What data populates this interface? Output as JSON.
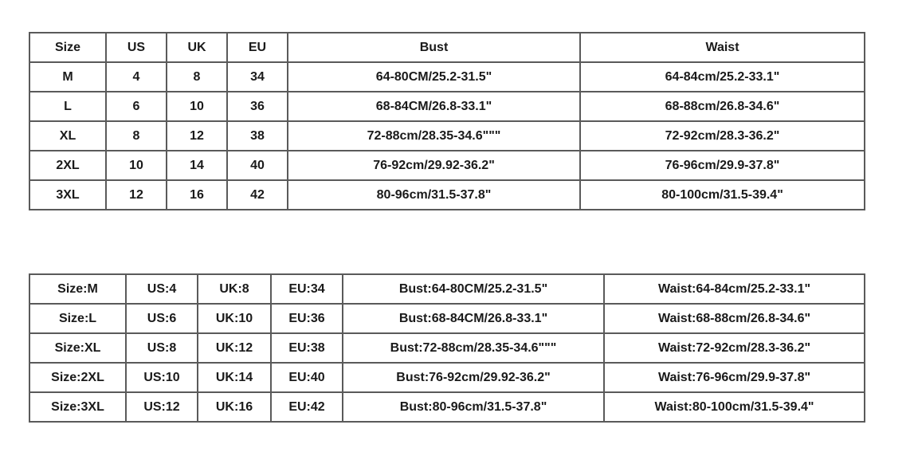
{
  "table1": {
    "header": [
      "Size",
      "US",
      "UK",
      "EU",
      "Bust",
      "Waist"
    ],
    "rows": [
      [
        "M",
        "4",
        "8",
        "34",
        "64-80CM/25.2-31.5\"",
        "64-84cm/25.2-33.1\""
      ],
      [
        "L",
        "6",
        "10",
        "36",
        "68-84CM/26.8-33.1\"",
        "68-88cm/26.8-34.6\""
      ],
      [
        "XL",
        "8",
        "12",
        "38",
        "72-88cm/28.35-34.6\"\"\"",
        "72-92cm/28.3-36.2\""
      ],
      [
        "2XL",
        "10",
        "14",
        "40",
        "76-92cm/29.92-36.2\"",
        "76-96cm/29.9-37.8\""
      ],
      [
        "3XL",
        "12",
        "16",
        "42",
        "80-96cm/31.5-37.8\"",
        "80-100cm/31.5-39.4\""
      ]
    ]
  },
  "table2": {
    "rows": [
      [
        "Size:M",
        "US:4",
        "UK:8",
        "EU:34",
        "Bust:64-80CM/25.2-31.5\"",
        "Waist:64-84cm/25.2-33.1\""
      ],
      [
        "Size:L",
        "US:6",
        "UK:10",
        "EU:36",
        "Bust:68-84CM/26.8-33.1\"",
        "Waist:68-88cm/26.8-34.6\""
      ],
      [
        "Size:XL",
        "US:8",
        "UK:12",
        "EU:38",
        "Bust:72-88cm/28.35-34.6\"\"\"",
        "Waist:72-92cm/28.3-36.2\""
      ],
      [
        "Size:2XL",
        "US:10",
        "UK:14",
        "EU:40",
        "Bust:76-92cm/29.92-36.2\"",
        "Waist:76-96cm/29.9-37.8\""
      ],
      [
        "Size:3XL",
        "US:12",
        "UK:16",
        "EU:42",
        "Bust:80-96cm/31.5-37.8\"",
        "Waist:80-100cm/31.5-39.4\""
      ]
    ]
  }
}
